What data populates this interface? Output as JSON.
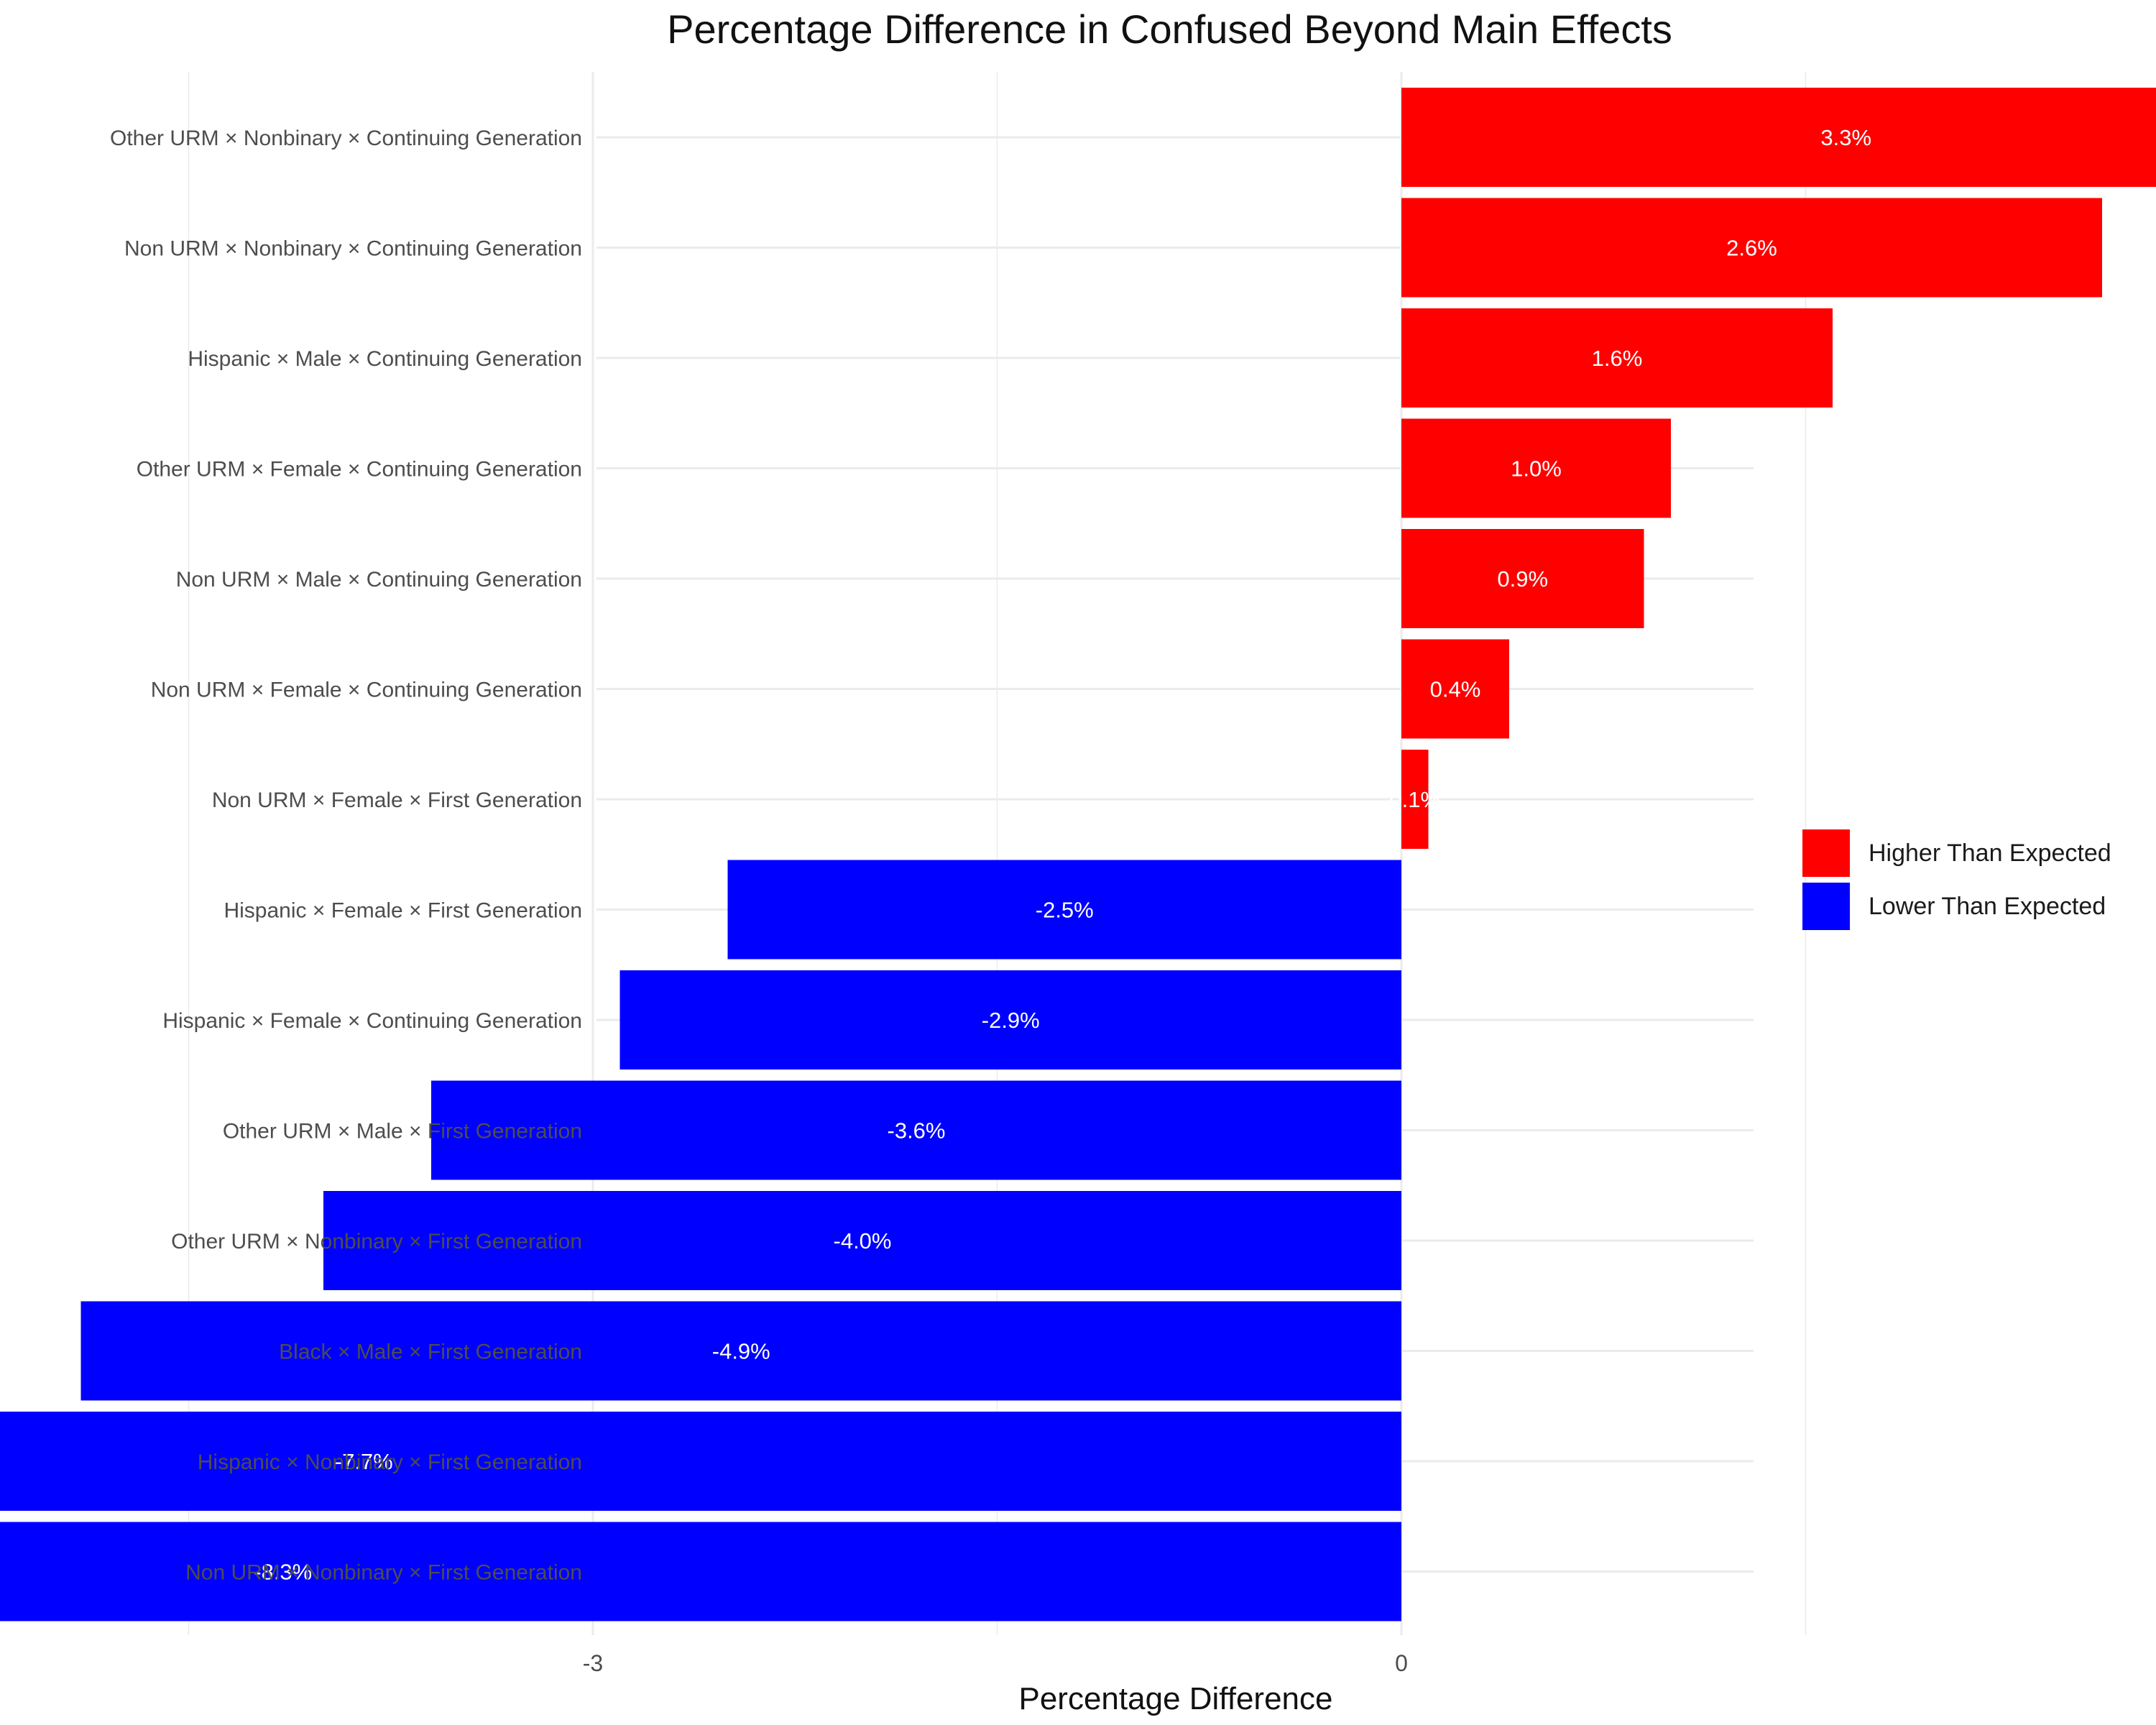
{
  "chart_data": {
    "type": "bar",
    "orientation": "horizontal",
    "title": "Percentage Difference in Confused Beyond Main Effects",
    "xlabel": "Percentage Difference",
    "ylabel": "",
    "xlim": [
      -8.75,
      3.9
    ],
    "xticks": [
      -6,
      -3,
      0,
      3
    ],
    "grid": true,
    "legend_position": "right",
    "legend": [
      {
        "label": "Higher Than Expected",
        "color": "#FF0000"
      },
      {
        "label": "Lower Than Expected",
        "color": "#0000FF"
      }
    ],
    "categories": [
      "Other URM × Nonbinary × Continuing Generation",
      "Non URM × Nonbinary × Continuing Generation",
      "Hispanic × Male × Continuing Generation",
      "Other URM × Female × Continuing Generation",
      "Non URM × Male × Continuing Generation",
      "Non URM × Female × Continuing Generation",
      "Non URM × Female × First Generation",
      "Hispanic × Female × First Generation",
      "Hispanic × Female × Continuing Generation",
      "Other URM × Male × First Generation",
      "Other URM × Nonbinary × First Generation",
      "Black × Male × First Generation",
      "Hispanic × Nonbinary × First Generation",
      "Non URM × Nonbinary × First Generation"
    ],
    "values": [
      3.3,
      2.6,
      1.6,
      1.0,
      0.9,
      0.4,
      0.1,
      -2.5,
      -2.9,
      -3.6,
      -4.0,
      -4.9,
      -7.7,
      -8.3
    ],
    "labels": [
      "3.3%",
      "2.6%",
      "1.6%",
      "1.0%",
      "0.9%",
      "0.4%",
      "0.1%",
      "-2.5%",
      "-2.9%",
      "-3.6%",
      "-4.0%",
      "-4.9%",
      "-7.7%",
      "-8.3%"
    ],
    "groups": [
      "Higher Than Expected",
      "Higher Than Expected",
      "Higher Than Expected",
      "Higher Than Expected",
      "Higher Than Expected",
      "Higher Than Expected",
      "Higher Than Expected",
      "Lower Than Expected",
      "Lower Than Expected",
      "Lower Than Expected",
      "Lower Than Expected",
      "Lower Than Expected",
      "Lower Than Expected",
      "Lower Than Expected"
    ]
  }
}
